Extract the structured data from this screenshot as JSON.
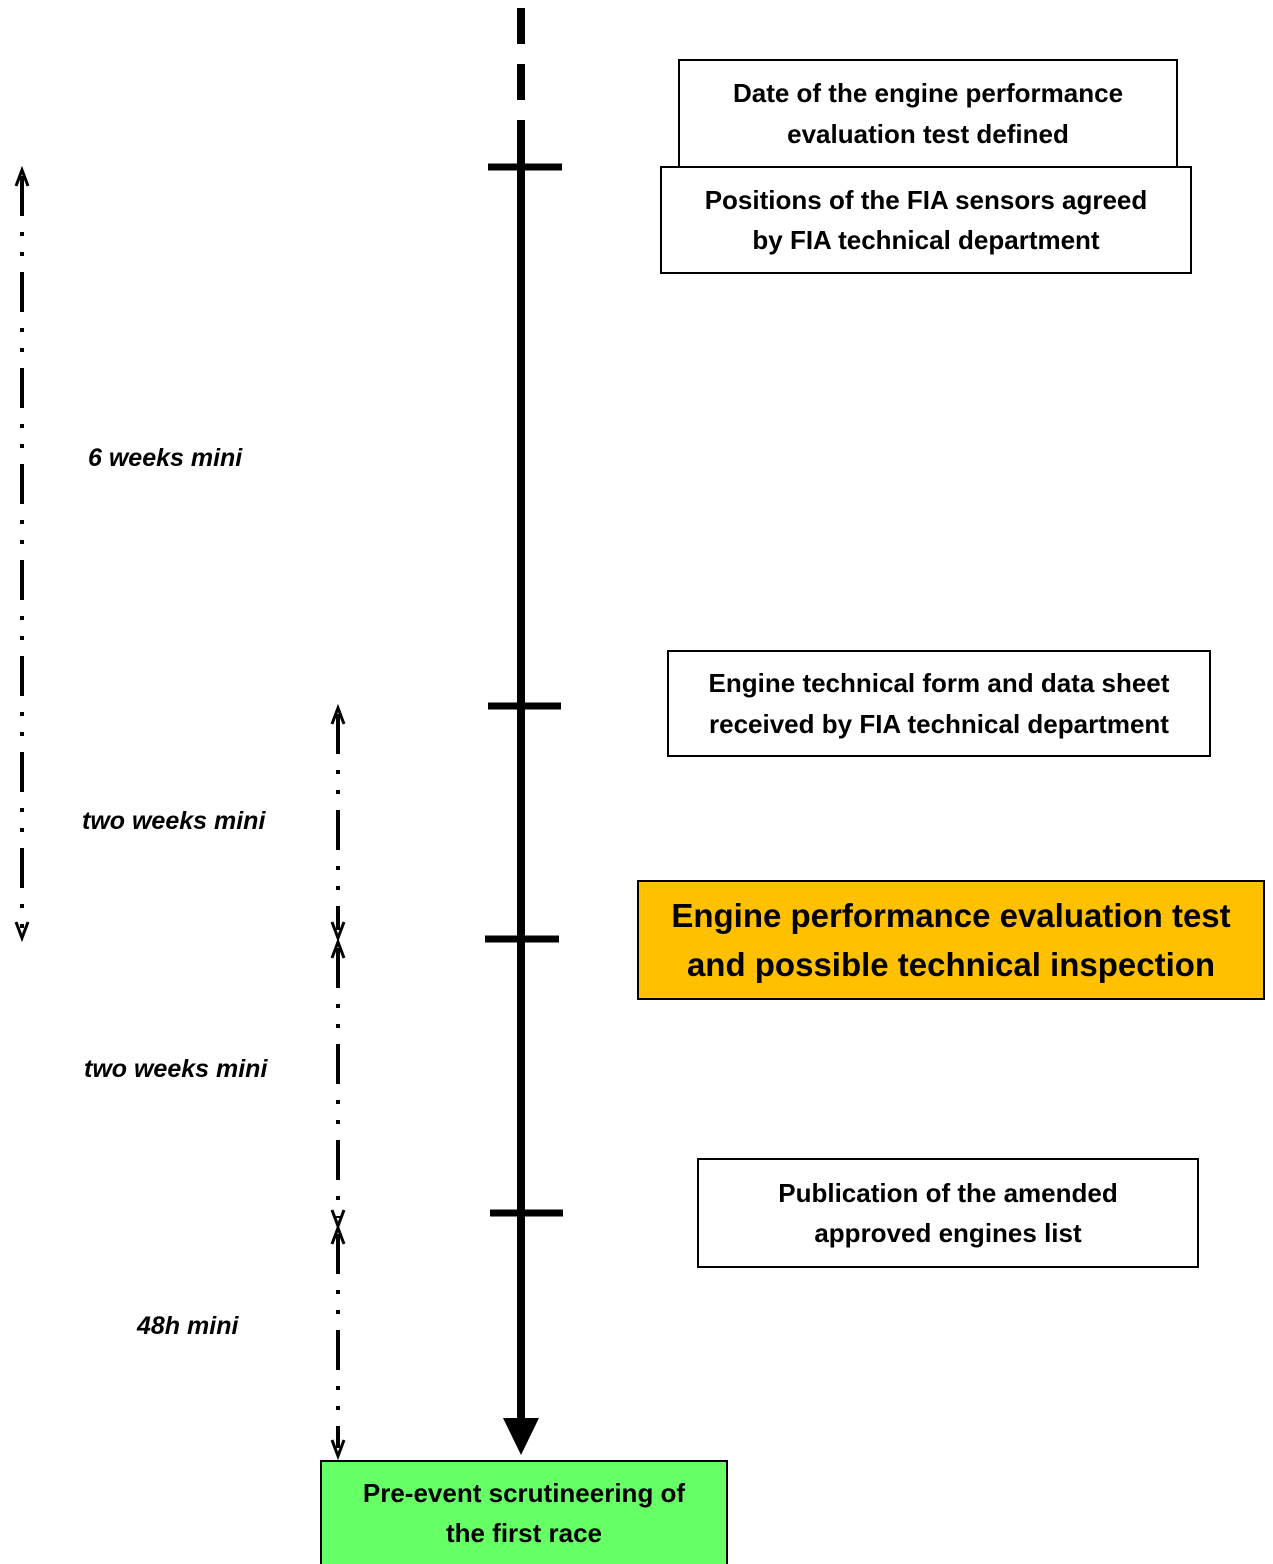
{
  "events": [
    {
      "id": "date-defined",
      "text": "Date of the engine performance\nevaluation test defined"
    },
    {
      "id": "sensors-agreed",
      "text": "Positions of the FIA sensors agreed\nby FIA technical department"
    },
    {
      "id": "form-received",
      "text": "Engine technical form and data sheet\nreceived by FIA technical department"
    },
    {
      "id": "evaluation-test",
      "text": "Engine performance evaluation test\nand possible technical inspection"
    },
    {
      "id": "publication",
      "text": "Publication of the amended\napproved engines list"
    },
    {
      "id": "scrutineering",
      "text": "Pre-event scrutineering of\nthe first race"
    }
  ],
  "durations": [
    {
      "id": "six-weeks",
      "text": "6 weeks mini"
    },
    {
      "id": "two-weeks-1",
      "text": "two weeks mini"
    },
    {
      "id": "two-weeks-2",
      "text": "two weeks mini"
    },
    {
      "id": "forty-eight-h",
      "text": "48h mini"
    }
  ],
  "colors": {
    "highlight_box": "#FFC000",
    "final_box": "#66FF66",
    "line": "#000000"
  }
}
